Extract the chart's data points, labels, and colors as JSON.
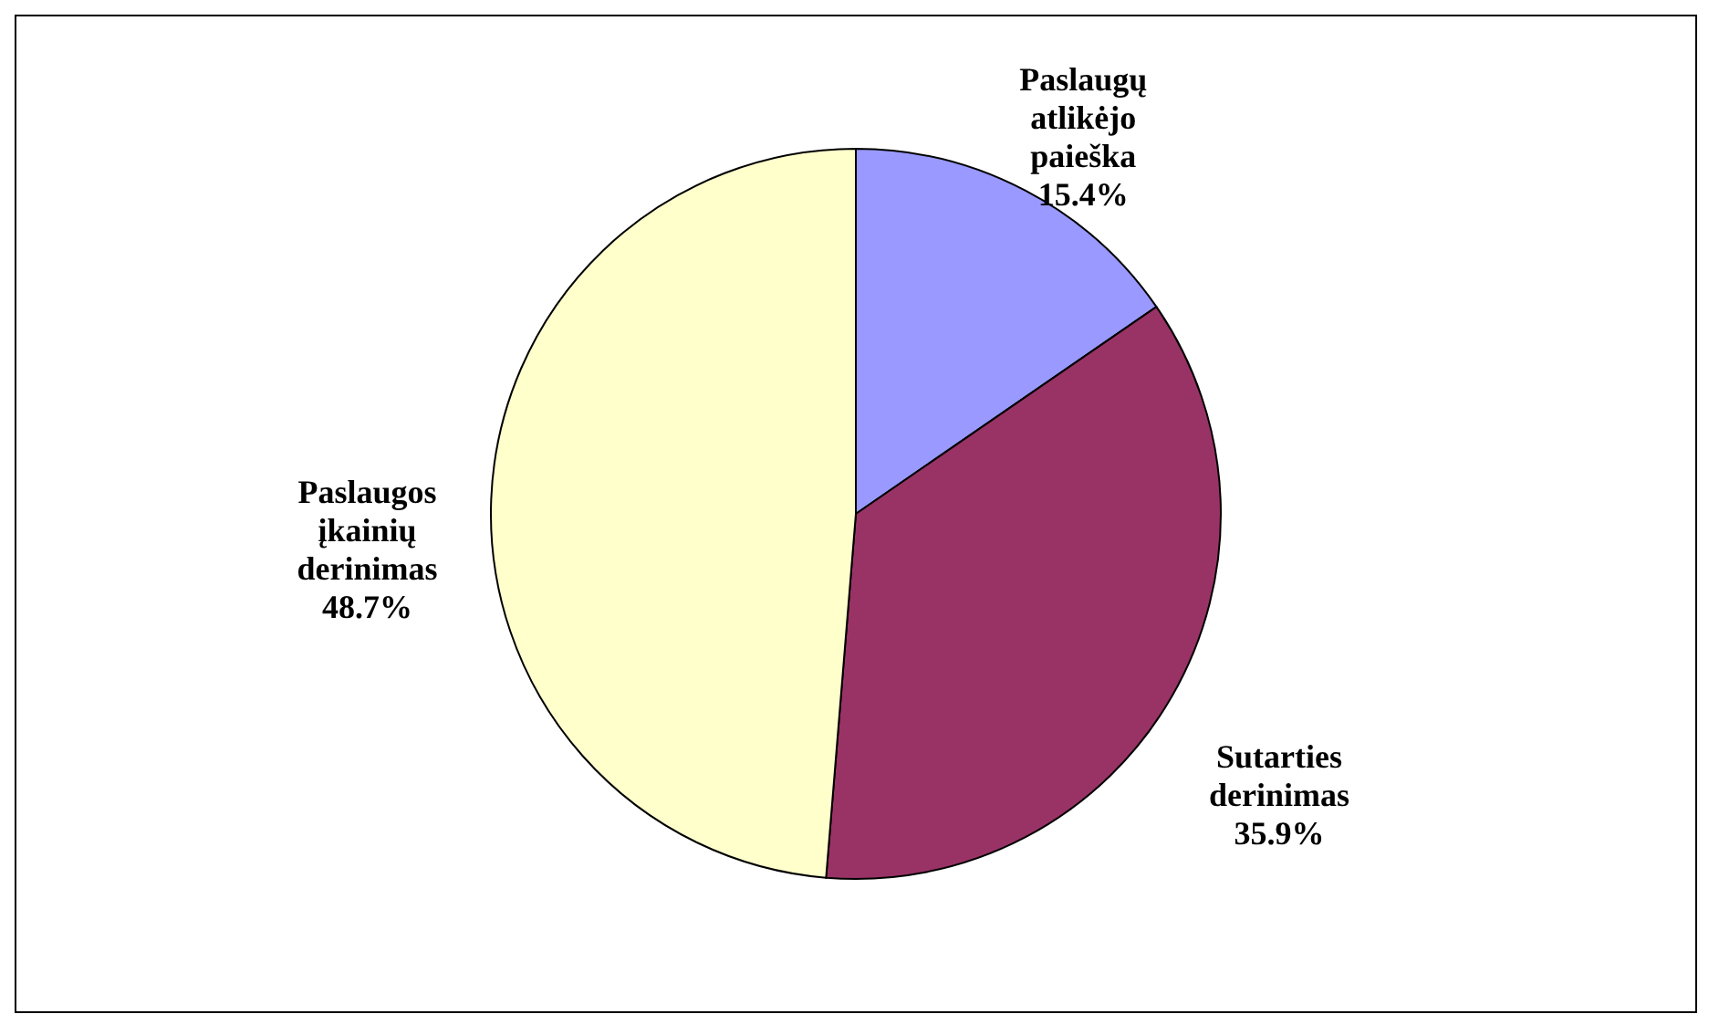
{
  "chart_data": {
    "type": "pie",
    "categories": [
      "Paslaugų atlikėjo paieška",
      "Sutarties derinimas",
      "Paslaugos įkainių derinimas"
    ],
    "values": [
      15.4,
      35.9,
      48.7
    ],
    "colors": [
      "#9999ff",
      "#993366",
      "#ffffcc"
    ],
    "value_labels": [
      "15.4%",
      "35.9%",
      "48.7%"
    ],
    "legend": false
  }
}
